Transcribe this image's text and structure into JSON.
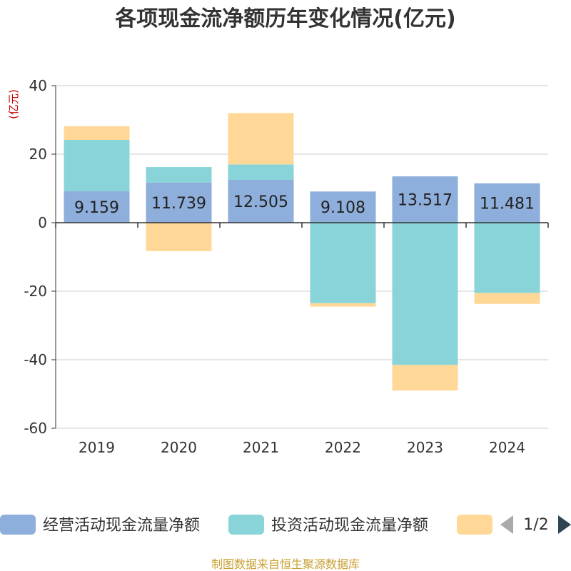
{
  "chart_data": {
    "type": "bar",
    "stacked": true,
    "title": "各项现金流净额历年变化情况(亿元)",
    "ylabel": "(亿元)",
    "xlabel": "",
    "categories": [
      "2019",
      "2020",
      "2021",
      "2022",
      "2023",
      "2024"
    ],
    "ylim": [
      -60,
      40
    ],
    "yticks": [
      -60,
      -40,
      -20,
      0,
      20,
      40
    ],
    "grid": true,
    "legend_position": "bottom",
    "series": [
      {
        "name": "经营活动现金流量净额",
        "color": "#8eaedb",
        "values": [
          9.159,
          11.739,
          12.505,
          9.108,
          13.517,
          11.481
        ],
        "labels": [
          "9.159",
          "11.739",
          "12.505",
          "9.108",
          "13.517",
          "11.481"
        ]
      },
      {
        "name": "投资活动现金流量净额",
        "color": "#88d4d8",
        "values": [
          15.0,
          4.5,
          4.5,
          -23.5,
          -41.5,
          -20.5
        ]
      },
      {
        "name": "",
        "color": "#ffd898",
        "values": [
          4.0,
          -8.3,
          15.0,
          -1.0,
          -7.5,
          -3.2
        ]
      }
    ],
    "legend_page": "1/2",
    "source": "制图数据来自恒生聚源数据库"
  }
}
